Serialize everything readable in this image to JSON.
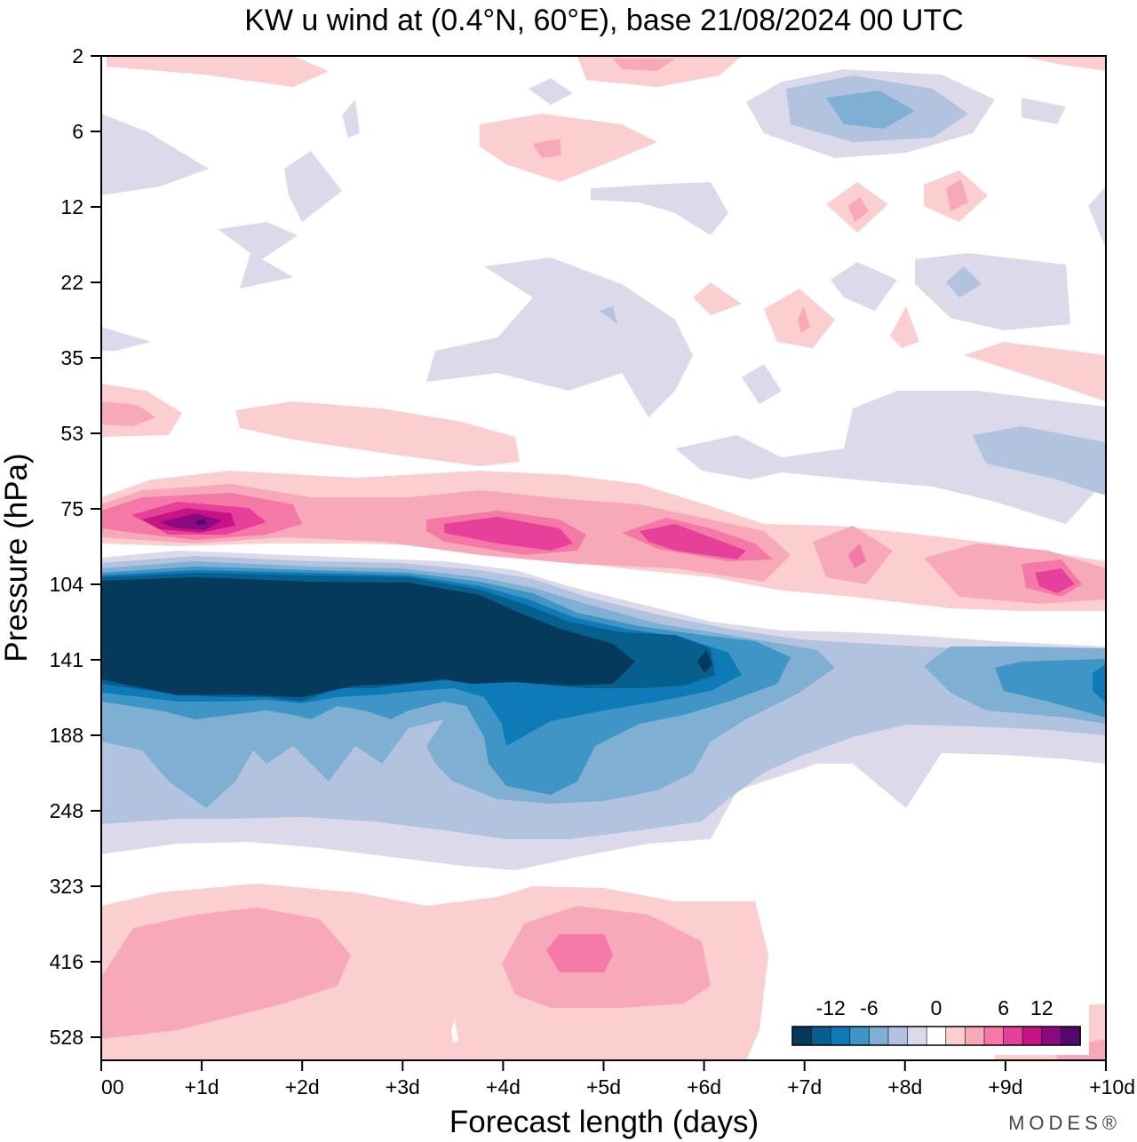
{
  "chart_data": {
    "type": "heatmap",
    "title": "KW u wind at (0.4°N, 60°E),  base 21/08/2024  00 UTC",
    "xlabel": "Forecast length (days)",
    "ylabel": "Pressure (hPa)",
    "x_ticks": [
      "00",
      "+1d",
      "+2d",
      "+3d",
      "+4d",
      "+5d",
      "+6d",
      "+7d",
      "+8d",
      "+9d",
      "+10d"
    ],
    "y_ticks": [
      "2",
      "6",
      "12",
      "22",
      "35",
      "53",
      "75",
      "104",
      "141",
      "188",
      "248",
      "323",
      "416",
      "528"
    ],
    "x_range_days": [
      0,
      10
    ],
    "y_scale": "log-pressure",
    "colorbar": {
      "labels": [
        "-12",
        "-6",
        "0",
        "6",
        "12"
      ],
      "levels": [
        -18,
        -15,
        -12,
        -9,
        -6,
        -4.5,
        -3,
        -1.5,
        1.5,
        3,
        4.5,
        6,
        9,
        12,
        15,
        18
      ],
      "colors": [
        "#053a5c",
        "#075f8e",
        "#0e7ab8",
        "#3e95c6",
        "#7fb0d4",
        "#b1c3df",
        "#dcdaea",
        "#ffffff",
        "#fbcfcf",
        "#f7a9b9",
        "#f479a7",
        "#e6409a",
        "#c61486",
        "#8c0a80",
        "#52086e"
      ]
    },
    "features": [
      {
        "name": "westerly band near 75-90 hPa",
        "max_u": 15,
        "location": "+1d, 82 hPa"
      },
      {
        "name": "easterly core near 104-160 hPa",
        "min_u": -18,
        "days": "00 to +5d"
      },
      {
        "name": "westerly region near 416 hPa",
        "max_u": 9,
        "location": "+4.6d, 420 hPa"
      }
    ]
  },
  "branding": {
    "logo_text": "MODES®"
  }
}
